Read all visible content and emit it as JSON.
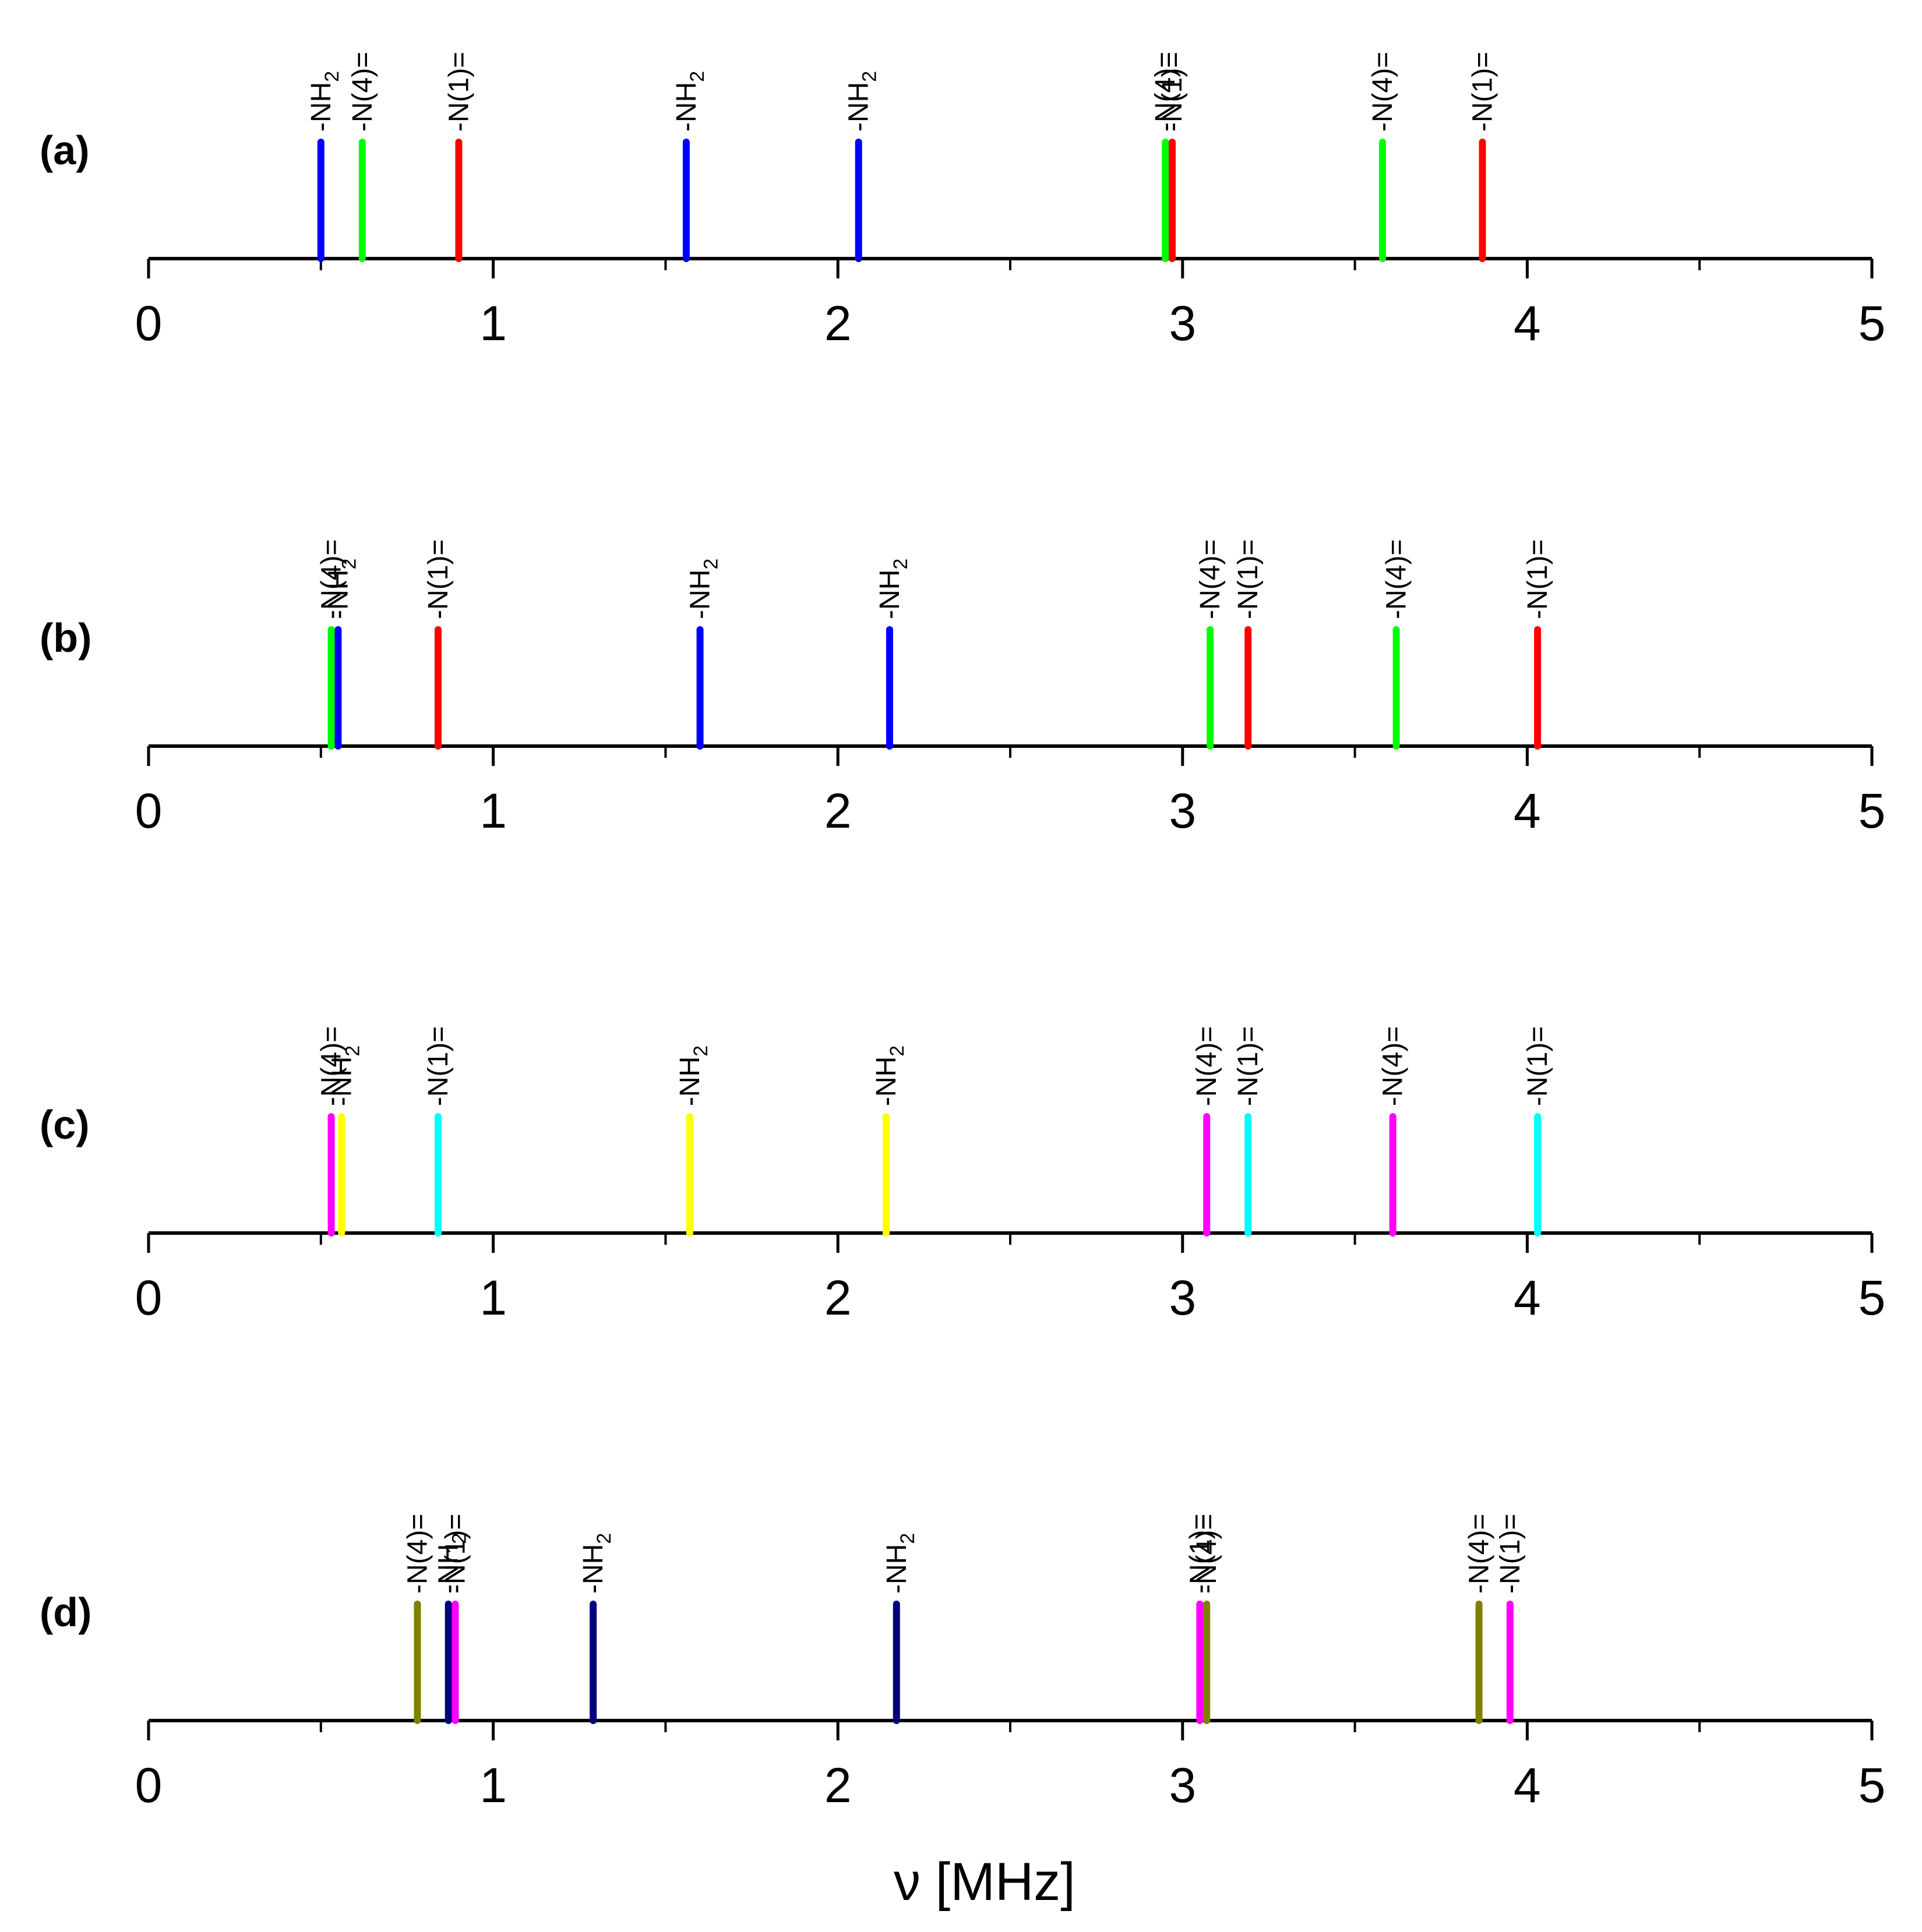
{
  "chart_data": {
    "type": "stick",
    "xlabel": "ν [MHz]",
    "xlim": [
      0,
      5
    ],
    "xticks": [
      "0",
      "1",
      "2",
      "3",
      "4",
      "5"
    ],
    "minor_ticks": true,
    "panels": [
      {
        "label": "(a)",
        "peaks": [
          {
            "x": 0.5,
            "label": "-NH",
            "sub": "2",
            "color": "#0000ff"
          },
          {
            "x": 0.62,
            "label": "-N(4)=",
            "sub": "",
            "color": "#00ff00"
          },
          {
            "x": 0.9,
            "label": "-N(1)=",
            "sub": "",
            "color": "#ff0000"
          },
          {
            "x": 1.56,
            "label": "-NH",
            "sub": "2",
            "color": "#0000ff"
          },
          {
            "x": 2.06,
            "label": "-NH",
            "sub": "2",
            "color": "#0000ff"
          },
          {
            "x": 2.95,
            "label": "-N(4)=",
            "sub": "",
            "color": "#00ff00"
          },
          {
            "x": 2.97,
            "label": "-N(1)=",
            "sub": "",
            "color": "#ff0000"
          },
          {
            "x": 3.58,
            "label": "-N(4)=",
            "sub": "",
            "color": "#00ff00"
          },
          {
            "x": 3.87,
            "label": "-N(1)=",
            "sub": "",
            "color": "#ff0000"
          }
        ]
      },
      {
        "label": "(b)",
        "peaks": [
          {
            "x": 0.53,
            "label": "-N(4)=",
            "sub": "",
            "color": "#00ff00"
          },
          {
            "x": 0.55,
            "label": "-NH",
            "sub": "2",
            "color": "#0000ff"
          },
          {
            "x": 0.84,
            "label": "-N(1)=",
            "sub": "",
            "color": "#ff0000"
          },
          {
            "x": 1.6,
            "label": "-NH",
            "sub": "2",
            "color": "#0000ff"
          },
          {
            "x": 2.15,
            "label": "-NH",
            "sub": "2",
            "color": "#0000ff"
          },
          {
            "x": 3.08,
            "label": "-N(4)=",
            "sub": "",
            "color": "#00ff00"
          },
          {
            "x": 3.19,
            "label": "-N(1)=",
            "sub": "",
            "color": "#ff0000"
          },
          {
            "x": 3.62,
            "label": "-N(4)=",
            "sub": "",
            "color": "#00ff00"
          },
          {
            "x": 4.03,
            "label": "-N(1)=",
            "sub": "",
            "color": "#ff0000"
          }
        ]
      },
      {
        "label": "(c)",
        "peaks": [
          {
            "x": 0.53,
            "label": "-N(4)=",
            "sub": "",
            "color": "#ff00ff"
          },
          {
            "x": 0.56,
            "label": "-NH",
            "sub": "2",
            "color": "#ffff00"
          },
          {
            "x": 0.84,
            "label": "-N(1)=",
            "sub": "",
            "color": "#00ffff"
          },
          {
            "x": 1.57,
            "label": "-NH",
            "sub": "2",
            "color": "#ffff00"
          },
          {
            "x": 2.14,
            "label": "-NH",
            "sub": "2",
            "color": "#ffff00"
          },
          {
            "x": 3.07,
            "label": "-N(4)=",
            "sub": "",
            "color": "#ff00ff"
          },
          {
            "x": 3.19,
            "label": "-N(1)=",
            "sub": "",
            "color": "#00ffff"
          },
          {
            "x": 3.61,
            "label": "-N(4)=",
            "sub": "",
            "color": "#ff00ff"
          },
          {
            "x": 4.03,
            "label": "-N(1)=",
            "sub": "",
            "color": "#00ffff"
          }
        ]
      },
      {
        "label": "(d)",
        "peaks": [
          {
            "x": 0.78,
            "label": "-N(4)=",
            "sub": "",
            "color": "#808000"
          },
          {
            "x": 0.87,
            "label": "-NH",
            "sub": "2",
            "color": "#000080"
          },
          {
            "x": 0.89,
            "label": "-N(1)=",
            "sub": "",
            "color": "#ff00ff"
          },
          {
            "x": 1.29,
            "label": "-NH",
            "sub": "2",
            "color": "#000080"
          },
          {
            "x": 2.17,
            "label": "-NH",
            "sub": "2",
            "color": "#000080"
          },
          {
            "x": 3.05,
            "label": "-N(1)=",
            "sub": "",
            "color": "#ff00ff"
          },
          {
            "x": 3.07,
            "label": "-N(4)=",
            "sub": "",
            "color": "#808000"
          },
          {
            "x": 3.86,
            "label": "-N(4)=",
            "sub": "",
            "color": "#808000"
          },
          {
            "x": 3.95,
            "label": "-N(1)=",
            "sub": "",
            "color": "#ff00ff"
          }
        ]
      }
    ]
  }
}
